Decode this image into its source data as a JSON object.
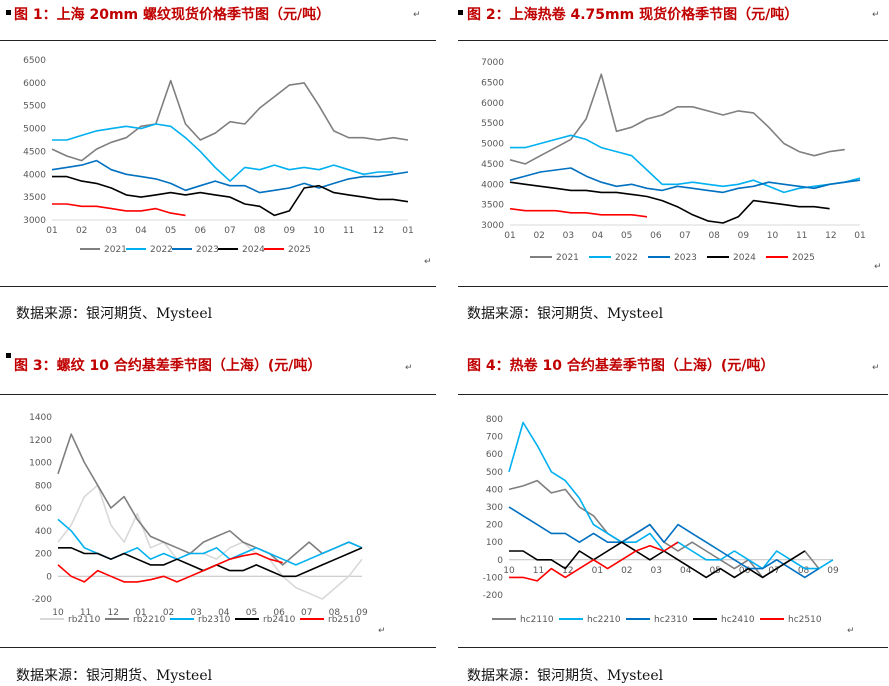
{
  "charts": [
    {
      "title": "图 1：上海 20mm 螺纹现货价格季节图（元/吨）",
      "source": "数据来源：银河期货、Mysteel",
      "chart_data": {
        "type": "line",
        "title": "图 1：上海 20mm 螺纹现货价格季节图（元/吨）",
        "ylim": [
          3000,
          6500
        ],
        "yticks": [
          3000,
          3500,
          4000,
          4500,
          5000,
          5500,
          6000,
          6500
        ],
        "xticks": [
          "01",
          "02",
          "03",
          "04",
          "05",
          "06",
          "07",
          "08",
          "09",
          "10",
          "11",
          "12",
          "01"
        ],
        "series": [
          {
            "name": "2021",
            "color": "#7f7f7f",
            "values": [
              4550,
              4400,
              4300,
              4550,
              4700,
              4800,
              5050,
              5100,
              6050,
              5100,
              4750,
              4900,
              5150,
              5100,
              5450,
              5700,
              5950,
              6000,
              5500,
              4950,
              4800,
              4800,
              4750,
              4800,
              4750
            ]
          },
          {
            "name": "2022",
            "color": "#00b0f0",
            "values": [
              4750,
              4750,
              4850,
              4950,
              5000,
              5050,
              5000,
              5100,
              5050,
              4800,
              4500,
              4150,
              3850,
              4150,
              4100,
              4200,
              4100,
              4150,
              4100,
              4200,
              4100,
              4000,
              4050,
              4050
            ]
          },
          {
            "name": "2023",
            "color": "#0070c0",
            "values": [
              4100,
              4150,
              4200,
              4300,
              4100,
              4000,
              3950,
              3900,
              3800,
              3650,
              3750,
              3850,
              3750,
              3750,
              3600,
              3650,
              3700,
              3800,
              3700,
              3800,
              3900,
              3950,
              3950,
              4000,
              4050
            ]
          },
          {
            "name": "2024",
            "color": "#000000",
            "values": [
              3950,
              3950,
              3850,
              3800,
              3700,
              3550,
              3500,
              3550,
              3600,
              3550,
              3600,
              3550,
              3500,
              3350,
              3300,
              3100,
              3200,
              3700,
              3750,
              3600,
              3550,
              3500,
              3450,
              3450,
              3400
            ]
          },
          {
            "name": "2025",
            "color": "#ff0000",
            "values": [
              3350,
              3350,
              3300,
              3300,
              3250,
              3200,
              3200,
              3250,
              3150,
              3100
            ]
          }
        ]
      }
    },
    {
      "title": "图 2：上海热卷 4.75mm 现货价格季节图（元/吨）",
      "source": "数据来源：银河期货、Mysteel",
      "chart_data": {
        "type": "line",
        "title": "图 2：上海热卷 4.75mm 现货价格季节图（元/吨）",
        "ylim": [
          3000,
          7000
        ],
        "yticks": [
          3000,
          3500,
          4000,
          4500,
          5000,
          5500,
          6000,
          6500,
          7000
        ],
        "xticks": [
          "01",
          "02",
          "03",
          "04",
          "05",
          "06",
          "07",
          "08",
          "09",
          "10",
          "11",
          "12",
          "01"
        ],
        "series": [
          {
            "name": "2021",
            "color": "#7f7f7f",
            "values": [
              4600,
              4500,
              4700,
              4900,
              5100,
              5600,
              6700,
              5300,
              5400,
              5600,
              5700,
              5900,
              5900,
              5800,
              5700,
              5800,
              5750,
              5400,
              5000,
              4800,
              4700,
              4800,
              4850
            ]
          },
          {
            "name": "2022",
            "color": "#00b0f0",
            "values": [
              4900,
              4900,
              5000,
              5100,
              5200,
              5100,
              4900,
              4800,
              4700,
              4350,
              4000,
              4000,
              4050,
              4000,
              3950,
              4000,
              4100,
              3950,
              3800,
              3900,
              3950,
              4000,
              4050,
              4150
            ]
          },
          {
            "name": "2023",
            "color": "#0070c0",
            "values": [
              4100,
              4200,
              4300,
              4350,
              4400,
              4200,
              4050,
              3950,
              4000,
              3900,
              3850,
              3950,
              3900,
              3850,
              3800,
              3900,
              3950,
              4050,
              4000,
              3950,
              3900,
              4000,
              4050,
              4100
            ]
          },
          {
            "name": "2024",
            "color": "#000000",
            "values": [
              4050,
              4000,
              3950,
              3900,
              3850,
              3850,
              3800,
              3800,
              3750,
              3700,
              3600,
              3450,
              3250,
              3100,
              3050,
              3200,
              3600,
              3550,
              3500,
              3450,
              3450,
              3400
            ]
          },
          {
            "name": "2025",
            "color": "#ff0000",
            "values": [
              3400,
              3350,
              3350,
              3350,
              3300,
              3300,
              3250,
              3250,
              3250,
              3200
            ]
          }
        ]
      }
    },
    {
      "title": "图 3：螺纹 10 合约基差季节图（上海）(元/吨）",
      "source": "数据来源：银河期货、Mysteel",
      "chart_data": {
        "type": "line",
        "title": "图 3：螺纹 10 合约基差季节图（上海）(元/吨）",
        "ylim": [
          -200,
          1400
        ],
        "yticks": [
          -200,
          0,
          200,
          400,
          600,
          800,
          1000,
          1200,
          1400
        ],
        "xticks": [
          "10",
          "11",
          "12",
          "01",
          "02",
          "03",
          "04",
          "05",
          "06",
          "07",
          "08",
          "09"
        ],
        "series": [
          {
            "name": "rb2110",
            "color": "#d9d9d9",
            "values": [
              300,
              450,
              700,
              800,
              450,
              300,
              550,
              250,
              300,
              150,
              200,
              200,
              150,
              250,
              300,
              200,
              150,
              0,
              -100,
              -150,
              -200,
              -100,
              0,
              150
            ]
          },
          {
            "name": "rb2210",
            "color": "#7f7f7f",
            "values": [
              900,
              1250,
              1000,
              800,
              600,
              700,
              500,
              350,
              300,
              250,
              200,
              300,
              350,
              400,
              300,
              250,
              200,
              100,
              200,
              300,
              200,
              250,
              300,
              250
            ]
          },
          {
            "name": "rb2310",
            "color": "#00b0f0",
            "values": [
              500,
              400,
              250,
              200,
              150,
              200,
              250,
              150,
              200,
              150,
              200,
              200,
              250,
              150,
              200,
              250,
              200,
              150,
              100,
              150,
              200,
              250,
              300,
              250
            ]
          },
          {
            "name": "rb2410",
            "color": "#000000",
            "values": [
              250,
              250,
              200,
              200,
              150,
              200,
              150,
              100,
              100,
              150,
              100,
              50,
              100,
              50,
              50,
              100,
              50,
              0,
              0,
              50,
              100,
              150,
              200,
              250
            ]
          },
          {
            "name": "rb2510",
            "color": "#ff0000",
            "values": [
              100,
              0,
              -50,
              50,
              0,
              -50,
              -50,
              -30,
              0,
              -50,
              0,
              50,
              100,
              150,
              180,
              200,
              150,
              120
            ]
          }
        ]
      }
    },
    {
      "title": "图 4：热卷 10 合约基差季节图（上海）(元/吨）",
      "source": "数据来源：银河期货、Mysteel",
      "chart_data": {
        "type": "line",
        "title": "图 4：热卷 10 合约基差季节图（上海）(元/吨）",
        "ylim": [
          -200,
          800
        ],
        "yticks": [
          -200,
          -100,
          0,
          100,
          200,
          300,
          400,
          500,
          600,
          700,
          800
        ],
        "xticks": [
          "10",
          "11",
          "12",
          "01",
          "02",
          "03",
          "04",
          "05",
          "06",
          "07",
          "08",
          "09"
        ],
        "series": [
          {
            "name": "hc2110",
            "color": "#7f7f7f",
            "values": [
              400,
              420,
              450,
              380,
              400,
              300,
              250,
              150,
              100,
              150,
              200,
              100,
              50,
              100,
              50,
              0,
              -50,
              0,
              -100,
              -50,
              0,
              50,
              -50
            ]
          },
          {
            "name": "hc2210",
            "color": "#00b0f0",
            "values": [
              500,
              780,
              650,
              500,
              450,
              350,
              200,
              150,
              100,
              100,
              150,
              50,
              100,
              50,
              0,
              0,
              50,
              0,
              -50,
              50,
              0,
              -50,
              -50,
              0
            ]
          },
          {
            "name": "hc2310",
            "color": "#0070c0",
            "values": [
              300,
              250,
              200,
              150,
              150,
              100,
              150,
              100,
              100,
              150,
              200,
              100,
              200,
              150,
              100,
              50,
              0,
              -50,
              -50,
              0,
              -50,
              -100,
              -50
            ]
          },
          {
            "name": "hc2410",
            "color": "#000000",
            "values": [
              50,
              50,
              0,
              0,
              -50,
              50,
              0,
              50,
              100,
              50,
              0,
              50,
              0,
              -50,
              -100,
              -50,
              -100,
              -50,
              -100,
              -50,
              0,
              50
            ]
          },
          {
            "name": "hc2510",
            "color": "#ff0000",
            "values": [
              -100,
              -100,
              -120,
              -50,
              -100,
              -50,
              0,
              -50,
              0,
              50,
              80,
              50,
              100
            ]
          }
        ]
      }
    }
  ]
}
